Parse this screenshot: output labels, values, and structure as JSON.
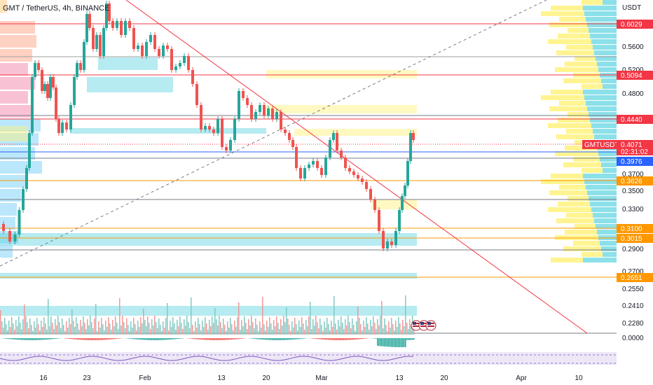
{
  "header": {
    "symbol": "GMT / TetherUS",
    "interval": "4h",
    "exchange": "BINANCE",
    "separator": ", "
  },
  "chart_data": {
    "type": "candlestick",
    "currency": "USDT",
    "price_axis": [
      "0.5600",
      "0.5200",
      "0.4800",
      "0.3700",
      "0.3500",
      "0.3300",
      "0.2900",
      "0.2700",
      "0.2550",
      "0.2410",
      "0.2280",
      "0.0000"
    ],
    "time_axis": [
      "16",
      "23",
      "Feb",
      "13",
      "20",
      "Mar",
      "13",
      "20",
      "Apr",
      "10"
    ],
    "price_tags": [
      {
        "label": "0.6029",
        "color": "#f23645"
      },
      {
        "label": "0.5094",
        "color": "#f23645"
      },
      {
        "label": "0.4440",
        "color": "#f23645"
      },
      {
        "label": "0.3976",
        "color": "#2962ff"
      },
      {
        "label": "0.3626",
        "color": "#ff9800"
      },
      {
        "label": "0.3100",
        "color": "#ff9800"
      },
      {
        "label": "0.3015",
        "color": "#ff9800"
      },
      {
        "label": "0.2651",
        "color": "#ff9800"
      }
    ],
    "last_price": {
      "symbol": "GMTUSDT",
      "price": "0.4071",
      "countdown": "02:31:02",
      "color": "#f23645"
    },
    "colors": {
      "up": "#26a69a",
      "down": "#ef5350",
      "zone_cyan": "#5bd3df",
      "zone_yellow": "#fff176",
      "trendline": "#f23645"
    }
  }
}
